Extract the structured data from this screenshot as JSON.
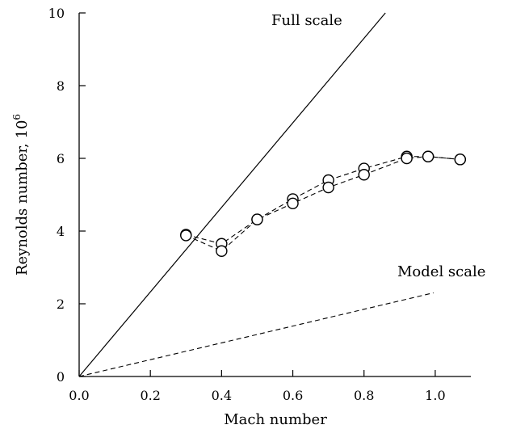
{
  "chart_data": {
    "type": "scatter",
    "xlabel": "Mach number",
    "ylabel": "Reynolds number, 10",
    "ylabel_exponent": "6",
    "xlim": [
      0,
      1.1
    ],
    "ylim": [
      0,
      10
    ],
    "x_ticks": [
      0.0,
      0.2,
      0.4,
      0.6,
      0.8,
      1.0
    ],
    "x_tick_labels": [
      "0.0",
      "0.2",
      "0.4",
      "0.6",
      "0.8",
      "1.0"
    ],
    "y_ticks": [
      0,
      2,
      4,
      6,
      8,
      10
    ],
    "y_tick_labels": [
      "0",
      "2",
      "4",
      "6",
      "8",
      "10"
    ],
    "grid": false,
    "annotations": [
      "Full scale",
      "Model scale"
    ],
    "series": [
      {
        "name": "Full scale",
        "style": "solid-line",
        "points": [
          [
            0.0,
            0.0
          ],
          [
            0.86,
            10.0
          ]
        ]
      },
      {
        "name": "Model scale",
        "style": "dashed-line",
        "points": [
          [
            0.0,
            0.0
          ],
          [
            0.995,
            2.3
          ]
        ]
      },
      {
        "style": "dashed-line-with-circles",
        "points": [
          [
            0.3,
            3.9
          ],
          [
            0.4,
            3.65
          ],
          [
            0.5,
            4.32
          ],
          [
            0.6,
            4.88
          ],
          [
            0.7,
            5.4
          ],
          [
            0.8,
            5.72
          ],
          [
            0.92,
            6.05
          ],
          [
            0.98,
            6.05
          ],
          [
            1.07,
            5.97
          ]
        ]
      },
      {
        "style": "dashed-line-with-circles",
        "points": [
          [
            0.3,
            3.88
          ],
          [
            0.4,
            3.45
          ],
          [
            0.5,
            4.32
          ],
          [
            0.6,
            4.76
          ],
          [
            0.7,
            5.2
          ],
          [
            0.8,
            5.55
          ],
          [
            0.92,
            6.0
          ],
          [
            0.98,
            6.05
          ],
          [
            1.07,
            5.97
          ]
        ]
      }
    ]
  }
}
